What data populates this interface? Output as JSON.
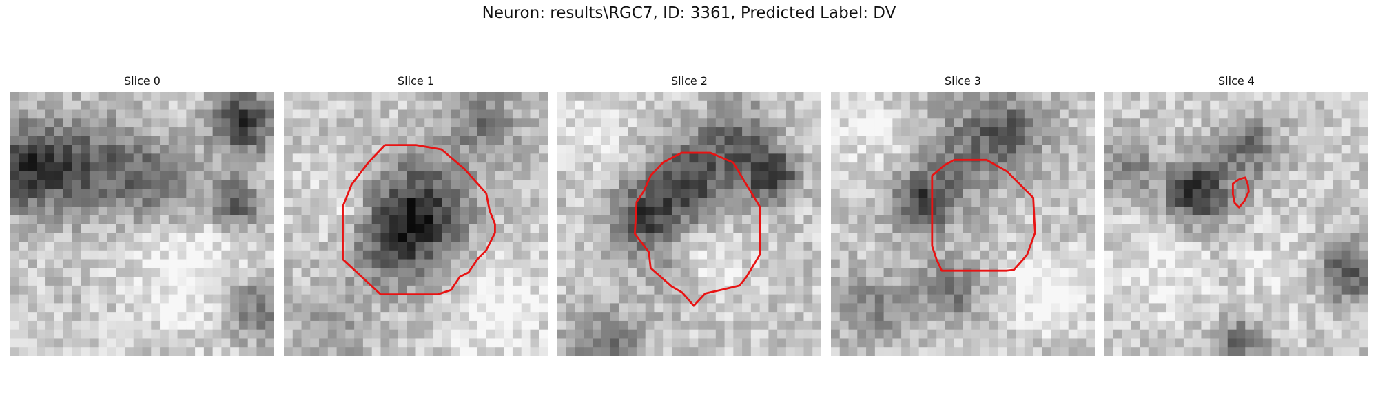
{
  "figure": {
    "title": "Neuron: results\\RGC7, ID: 3361, Predicted Label: DV"
  },
  "colors": {
    "background": "#ffffff",
    "contour": "#e81313",
    "image_colormap": "gray"
  },
  "slices": [
    {
      "title": "Slice 0",
      "has_contour": false
    },
    {
      "title": "Slice 1",
      "has_contour": true
    },
    {
      "title": "Slice 2",
      "has_contour": true
    },
    {
      "title": "Slice 3",
      "has_contour": true
    },
    {
      "title": "Slice 4",
      "has_contour": true
    }
  ]
}
